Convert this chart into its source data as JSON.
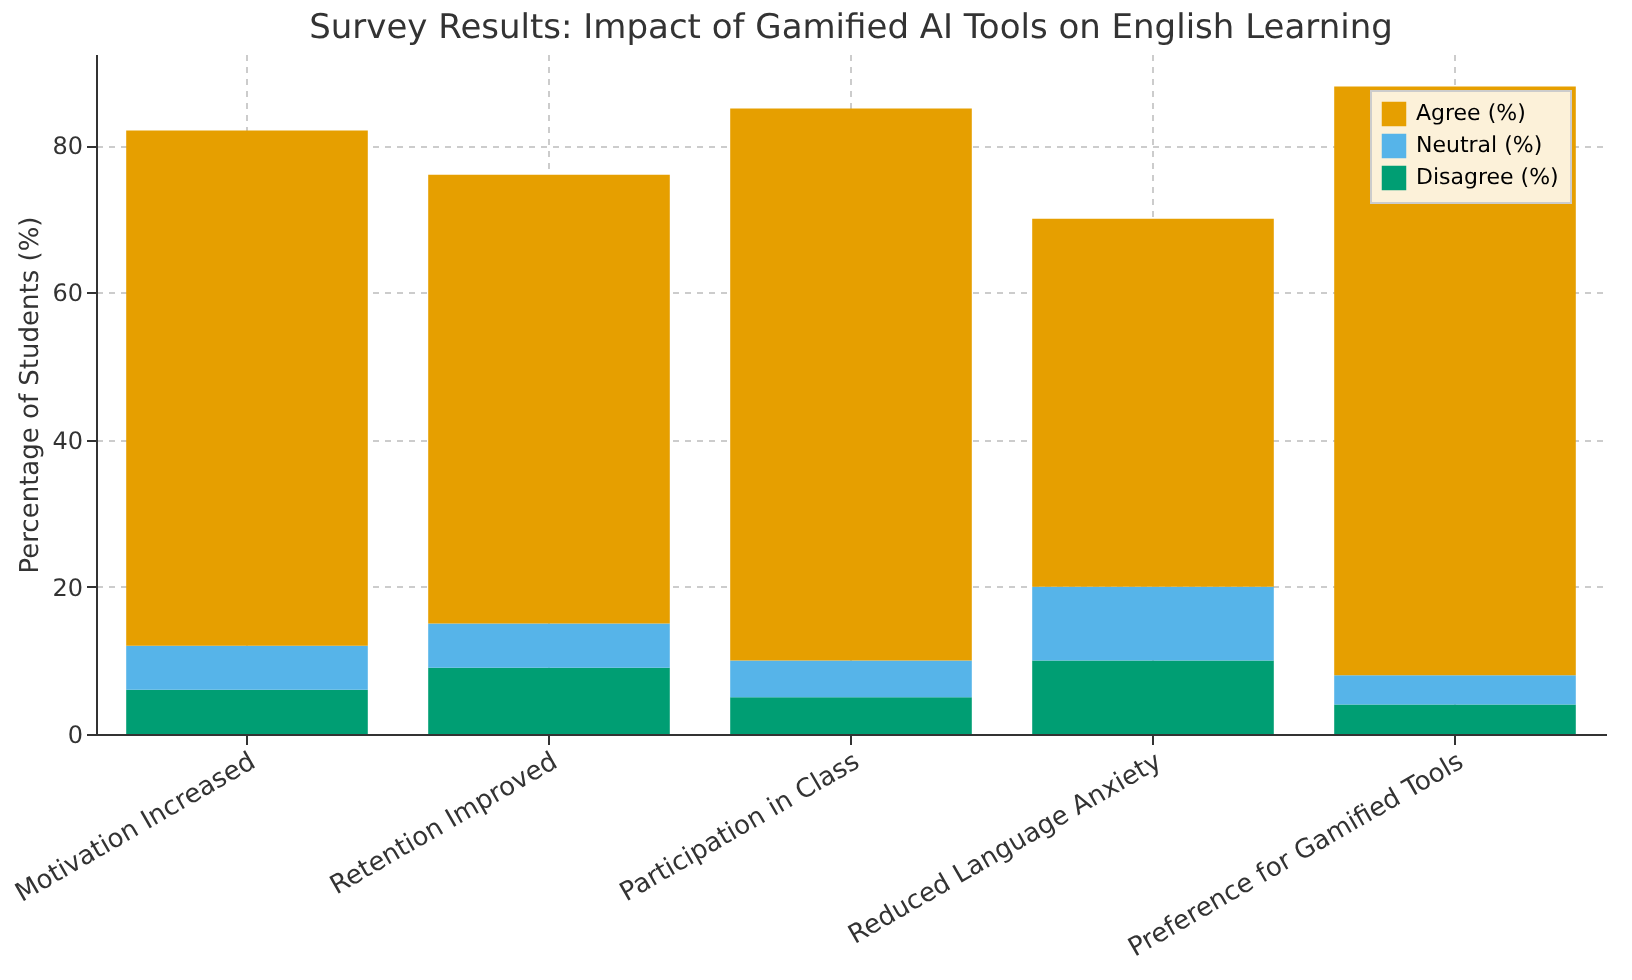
{
  "chart_data": {
    "type": "bar",
    "title": "Survey Results: Impact of Gamified AI Tools on English Learning",
    "ylabel": "Percentage of Students (%)",
    "categories": [
      "Motivation Increased",
      "Retention Improved",
      "Participation in Class",
      "Reduced Language Anxiety",
      "Preference for Gamified Tools"
    ],
    "stacked": true,
    "series": [
      {
        "name": "Disagree (%)",
        "color": "#009e73",
        "values": [
          6,
          9,
          5,
          10,
          4
        ]
      },
      {
        "name": "Neutral (%)",
        "color": "#56b4e9",
        "values": [
          6,
          6,
          5,
          10,
          4
        ]
      },
      {
        "name": "Agree (%)",
        "color": "#e69f00",
        "values": [
          70,
          61,
          75,
          50,
          80
        ]
      }
    ],
    "ylim": [
      0,
      92.4
    ],
    "yticks": [
      0,
      20,
      40,
      60,
      80
    ],
    "grid": true,
    "legend": "top right"
  }
}
